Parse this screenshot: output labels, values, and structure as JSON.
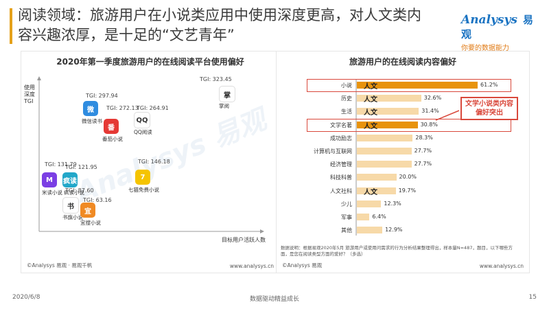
{
  "header": {
    "title": "阅读领域：旅游用户在小说类应用中使用深度更高，对人文类内容兴趣浓厚，是十足的“文艺青年”",
    "logo_main": "Analysys",
    "logo_cn": "易观",
    "logo_sub": "你要的数据能力"
  },
  "left_panel": {
    "source": "©Analysys 易观 · 易观千帆",
    "url": "www.analysys.cn",
    "watermark": "Analysys 易观"
  },
  "right_panel": {
    "note": "数据说明：根据易观2020年5月 旅游用户或使用问需求的行为分析结果整理得出，样本量N=487，题目，以下哪些方面，是您在阅读类型方面的爱好？（多选）",
    "source": "©Analysys 易观",
    "url": "www.analysys.cn",
    "callout": "文学小说类内容偏好突出",
    "highlight_label": "人文"
  },
  "footer": {
    "date": "2020/6/8",
    "center": "数据驱动精益成长",
    "page": "15"
  },
  "chart_data": [
    {
      "type": "scatter",
      "title": "2020年第一季度旅游用户的在线阅读平台使用偏好",
      "ylabel": "使用深度TGI",
      "xlabel": "目标用户活跃人数",
      "points": [
        {
          "name": "掌阅",
          "tgi": 323.45,
          "color": "#ffffff",
          "icon_text": "掌"
        },
        {
          "name": "微信读书",
          "tgi": 297.94,
          "color": "#2f8ce0",
          "icon_text": "微"
        },
        {
          "name": "番茄小说",
          "tgi": 272.13,
          "color": "#e53935",
          "icon_text": "番"
        },
        {
          "name": "QQ阅读",
          "tgi": 264.91,
          "color": "#ffffff",
          "icon_text": "QQ"
        },
        {
          "name": "米读小说",
          "tgi": 131.79,
          "color": "#7b3fe4",
          "icon_text": "M"
        },
        {
          "name": "疯读小说",
          "tgi": 121.95,
          "color": "#22a7c9",
          "icon_text": "疯读"
        },
        {
          "name": "七猫免费小说",
          "tgi": 146.18,
          "color": "#f5c400",
          "icon_text": "7"
        },
        {
          "name": "书旗小说",
          "tgi": 87.6,
          "color": "#ffffff",
          "icon_text": "书"
        },
        {
          "name": "宜搜小说",
          "tgi": 63.16,
          "color": "#f08a24",
          "icon_text": "宜"
        }
      ]
    },
    {
      "type": "bar",
      "title": "旅游用户的在线阅读内容偏好",
      "categories": [
        "小说",
        "历史",
        "生活",
        "文学名著",
        "成功励志",
        "计算机与互联网",
        "经济管理",
        "科技科普",
        "人文社科",
        "少儿",
        "军事",
        "其他"
      ],
      "values": [
        61.2,
        32.6,
        31.4,
        30.8,
        28.3,
        27.7,
        27.7,
        20.0,
        19.7,
        12.3,
        6.4,
        12.9
      ],
      "labels": [
        "61.2%",
        "32.6%",
        "31.4%",
        "30.8%",
        "28.3%",
        "27.7%",
        "27.7%",
        "20.0%",
        "19.7%",
        "12.3%",
        "6.4%",
        "12.9%"
      ],
      "tagged": [
        "小说",
        "历史",
        "生活",
        "文学名著",
        "人文社科"
      ],
      "highlighted": [
        "小说",
        "文学名著"
      ],
      "colors": {
        "highlight": "#e8930c",
        "normal": "#f7d9a8"
      }
    }
  ]
}
